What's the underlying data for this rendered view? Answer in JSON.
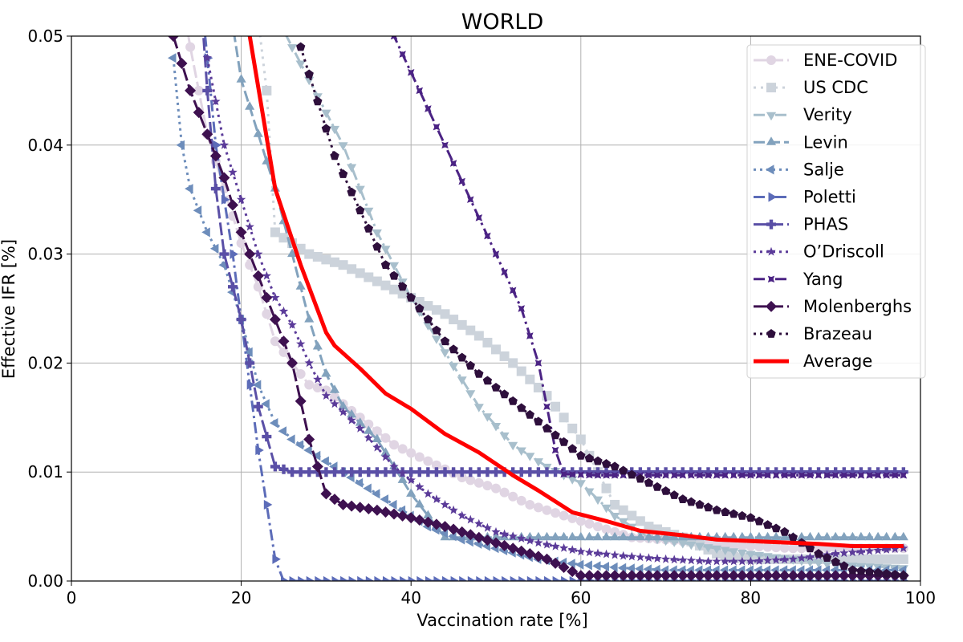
{
  "chart_data": {
    "type": "line",
    "title": "WORLD",
    "xlabel": "Vaccination rate [%]",
    "ylabel": "Effective IFR [%]",
    "xlim": [
      0,
      100
    ],
    "ylim": [
      0,
      0.05
    ],
    "xticks": [
      0,
      20,
      40,
      60,
      80,
      100
    ],
    "yticks": [
      0.0,
      0.01,
      0.02,
      0.03,
      0.04,
      0.05
    ],
    "xtick_labels": [
      "0",
      "20",
      "40",
      "60",
      "80",
      "100"
    ],
    "ytick_labels": [
      "0.00",
      "0.01",
      "0.02",
      "0.03",
      "0.04",
      "0.05"
    ],
    "grid": true,
    "legend_position": "top-right",
    "series": [
      {
        "name": "ENE-COVID",
        "color": "#e0d5e3",
        "dash": "16,5",
        "width": 3,
        "marker": "circle",
        "points": [
          [
            12,
            0.058
          ],
          [
            14,
            0.049
          ],
          [
            16,
            0.041
          ],
          [
            18,
            0.036
          ],
          [
            20,
            0.031
          ],
          [
            22,
            0.027
          ],
          [
            24,
            0.022
          ],
          [
            26,
            0.02
          ],
          [
            28,
            0.018
          ],
          [
            30,
            0.0175
          ],
          [
            34,
            0.015
          ],
          [
            38,
            0.0125
          ],
          [
            42,
            0.011
          ],
          [
            46,
            0.0095
          ],
          [
            50,
            0.0085
          ],
          [
            54,
            0.007
          ],
          [
            58,
            0.006
          ],
          [
            62,
            0.005
          ],
          [
            66,
            0.004
          ],
          [
            70,
            0.0038
          ],
          [
            75,
            0.0034
          ],
          [
            80,
            0.0032
          ],
          [
            85,
            0.003
          ],
          [
            90,
            0.003
          ],
          [
            98,
            0.003
          ]
        ]
      },
      {
        "name": "US CDC",
        "color": "#ccd3db",
        "dash": "3,6",
        "width": 3,
        "marker": "square",
        "points": [
          [
            21,
            0.058
          ],
          [
            23,
            0.045
          ],
          [
            24,
            0.032
          ],
          [
            26,
            0.031
          ],
          [
            28,
            0.03
          ],
          [
            32,
            0.029
          ],
          [
            36,
            0.0275
          ],
          [
            40,
            0.026
          ],
          [
            44,
            0.0245
          ],
          [
            48,
            0.0225
          ],
          [
            52,
            0.02
          ],
          [
            56,
            0.017
          ],
          [
            60,
            0.013
          ],
          [
            64,
            0.007
          ],
          [
            68,
            0.005
          ],
          [
            72,
            0.004
          ],
          [
            76,
            0.0025
          ],
          [
            80,
            0.002
          ],
          [
            85,
            0.002
          ],
          [
            90,
            0.002
          ],
          [
            98,
            0.002
          ]
        ]
      },
      {
        "name": "Verity",
        "color": "#a8bfcc",
        "dash": "14,5,3,5",
        "width": 3,
        "marker": "tri-down",
        "points": [
          [
            24,
            0.052
          ],
          [
            26,
            0.049
          ],
          [
            28,
            0.046
          ],
          [
            30,
            0.043
          ],
          [
            32,
            0.04
          ],
          [
            34,
            0.036
          ],
          [
            36,
            0.032
          ],
          [
            38,
            0.029
          ],
          [
            40,
            0.026
          ],
          [
            44,
            0.021
          ],
          [
            48,
            0.016
          ],
          [
            52,
            0.0125
          ],
          [
            56,
            0.0105
          ],
          [
            60,
            0.009
          ],
          [
            64,
            0.006
          ],
          [
            68,
            0.004
          ],
          [
            72,
            0.0035
          ],
          [
            76,
            0.003
          ],
          [
            80,
            0.0025
          ],
          [
            85,
            0.002
          ],
          [
            90,
            0.0015
          ],
          [
            98,
            0.0012
          ]
        ]
      },
      {
        "name": "Levin",
        "color": "#82a2bd",
        "dash": "14,5",
        "width": 3,
        "marker": "tri-up",
        "points": [
          [
            18,
            0.056
          ],
          [
            20,
            0.046
          ],
          [
            22,
            0.041
          ],
          [
            24,
            0.036
          ],
          [
            26,
            0.03
          ],
          [
            28,
            0.024
          ],
          [
            30,
            0.019
          ],
          [
            32,
            0.016
          ],
          [
            34,
            0.0145
          ],
          [
            36,
            0.013
          ],
          [
            40,
            0.008
          ],
          [
            44,
            0.004
          ],
          [
            48,
            0.004
          ],
          [
            55,
            0.004
          ],
          [
            65,
            0.004
          ],
          [
            75,
            0.004
          ],
          [
            85,
            0.004
          ],
          [
            98,
            0.004
          ]
        ]
      },
      {
        "name": "Salje",
        "color": "#6d8dbb",
        "dash": "3,5",
        "width": 3,
        "marker": "tri-left",
        "points": [
          [
            12,
            0.048
          ],
          [
            13,
            0.04
          ],
          [
            14,
            0.036
          ],
          [
            16,
            0.032
          ],
          [
            18,
            0.029
          ],
          [
            20,
            0.024
          ],
          [
            22,
            0.018
          ],
          [
            24,
            0.0145
          ],
          [
            26,
            0.013
          ],
          [
            30,
            0.011
          ],
          [
            34,
            0.009
          ],
          [
            38,
            0.007
          ],
          [
            42,
            0.005
          ],
          [
            46,
            0.0038
          ],
          [
            50,
            0.003
          ],
          [
            55,
            0.002
          ],
          [
            60,
            0.0015
          ],
          [
            65,
            0.0012
          ],
          [
            70,
            0.001
          ],
          [
            80,
            0.001
          ],
          [
            98,
            0.001
          ]
        ]
      },
      {
        "name": "Poletti",
        "color": "#5c6cb8",
        "dash": "14,5,3,5",
        "width": 3,
        "marker": "tri-right",
        "points": [
          [
            15,
            0.056
          ],
          [
            17,
            0.04
          ],
          [
            19,
            0.03
          ],
          [
            20,
            0.024
          ],
          [
            21,
            0.018
          ],
          [
            22,
            0.012
          ],
          [
            23,
            0.007
          ],
          [
            24,
            0.002
          ],
          [
            25,
            0.0
          ],
          [
            40,
            0.0
          ],
          [
            60,
            0.0
          ],
          [
            80,
            0.0
          ],
          [
            98,
            0.0
          ]
        ]
      },
      {
        "name": "PHAS",
        "color": "#5a4fa6",
        "dash": "16,5",
        "width": 3,
        "marker": "plus",
        "points": [
          [
            15,
            0.056
          ],
          [
            16,
            0.045
          ],
          [
            17,
            0.036
          ],
          [
            18,
            0.03
          ],
          [
            20,
            0.024
          ],
          [
            22,
            0.016
          ],
          [
            24,
            0.0105
          ],
          [
            26,
            0.01
          ],
          [
            40,
            0.01
          ],
          [
            60,
            0.01
          ],
          [
            80,
            0.01
          ],
          [
            98,
            0.01
          ]
        ]
      },
      {
        "name": "O’Driscoll",
        "color": "#5b3b99",
        "dash": "3,5",
        "width": 3,
        "marker": "star",
        "points": [
          [
            16,
            0.048
          ],
          [
            18,
            0.04
          ],
          [
            20,
            0.035
          ],
          [
            22,
            0.03
          ],
          [
            24,
            0.026
          ],
          [
            26,
            0.0235
          ],
          [
            28,
            0.02
          ],
          [
            30,
            0.017
          ],
          [
            34,
            0.014
          ],
          [
            38,
            0.0105
          ],
          [
            42,
            0.008
          ],
          [
            46,
            0.006
          ],
          [
            50,
            0.0045
          ],
          [
            55,
            0.0035
          ],
          [
            60,
            0.0027
          ],
          [
            65,
            0.0023
          ],
          [
            70,
            0.002
          ],
          [
            75,
            0.0018
          ],
          [
            80,
            0.0018
          ],
          [
            85,
            0.002
          ],
          [
            90,
            0.0025
          ],
          [
            98,
            0.003
          ]
        ]
      },
      {
        "name": "Yang",
        "color": "#4b2384",
        "dash": "14,5,3,5",
        "width": 3,
        "marker": "cross",
        "points": [
          [
            35,
            0.058
          ],
          [
            38,
            0.05
          ],
          [
            41,
            0.045
          ],
          [
            44,
            0.04
          ],
          [
            47,
            0.035
          ],
          [
            50,
            0.03
          ],
          [
            53,
            0.025
          ],
          [
            55,
            0.02
          ],
          [
            57,
            0.012
          ],
          [
            58,
            0.0098
          ],
          [
            62,
            0.0097
          ],
          [
            70,
            0.0097
          ],
          [
            80,
            0.0097
          ],
          [
            90,
            0.0097
          ],
          [
            98,
            0.0097
          ]
        ]
      },
      {
        "name": "Molenberghs",
        "color": "#3e1150",
        "dash": "16,5",
        "width": 3,
        "marker": "diamond",
        "points": [
          [
            12,
            0.05
          ],
          [
            14,
            0.045
          ],
          [
            16,
            0.041
          ],
          [
            18,
            0.037
          ],
          [
            20,
            0.032
          ],
          [
            22,
            0.028
          ],
          [
            24,
            0.024
          ],
          [
            26,
            0.02
          ],
          [
            28,
            0.013
          ],
          [
            30,
            0.008
          ],
          [
            32,
            0.007
          ],
          [
            36,
            0.0065
          ],
          [
            40,
            0.0058
          ],
          [
            44,
            0.005
          ],
          [
            48,
            0.004
          ],
          [
            52,
            0.003
          ],
          [
            56,
            0.002
          ],
          [
            60,
            0.0005
          ],
          [
            70,
            0.0005
          ],
          [
            80,
            0.0005
          ],
          [
            98,
            0.0005
          ]
        ]
      },
      {
        "name": "Brazeau",
        "color": "#2e0f3c",
        "dash": "3,5",
        "width": 3,
        "marker": "pentagon",
        "points": [
          [
            27,
            0.049
          ],
          [
            29,
            0.044
          ],
          [
            31,
            0.039
          ],
          [
            34,
            0.034
          ],
          [
            37,
            0.029
          ],
          [
            40,
            0.026
          ],
          [
            44,
            0.022
          ],
          [
            48,
            0.019
          ],
          [
            52,
            0.0165
          ],
          [
            56,
            0.014
          ],
          [
            60,
            0.0115
          ],
          [
            64,
            0.0105
          ],
          [
            68,
            0.009
          ],
          [
            72,
            0.0075
          ],
          [
            76,
            0.0065
          ],
          [
            80,
            0.0058
          ],
          [
            84,
            0.0045
          ],
          [
            88,
            0.0025
          ],
          [
            92,
            0.001
          ],
          [
            98,
            0.0005
          ]
        ]
      },
      {
        "name": "Average",
        "color": "#ff0000",
        "dash": "",
        "width": 5,
        "marker": "none",
        "points": [
          [
            21,
            0.05
          ],
          [
            24,
            0.036
          ],
          [
            27,
            0.029
          ],
          [
            30,
            0.0228
          ],
          [
            31,
            0.0216
          ],
          [
            34,
            0.0195
          ],
          [
            37,
            0.0172
          ],
          [
            40,
            0.0158
          ],
          [
            44,
            0.0135
          ],
          [
            48,
            0.0118
          ],
          [
            52,
            0.0097
          ],
          [
            55,
            0.0083
          ],
          [
            59,
            0.0063
          ],
          [
            63,
            0.0055
          ],
          [
            67,
            0.0046
          ],
          [
            72,
            0.0042
          ],
          [
            76,
            0.0038
          ],
          [
            82,
            0.0036
          ],
          [
            88,
            0.0034
          ],
          [
            92,
            0.0032
          ],
          [
            98,
            0.0032
          ]
        ]
      }
    ]
  }
}
